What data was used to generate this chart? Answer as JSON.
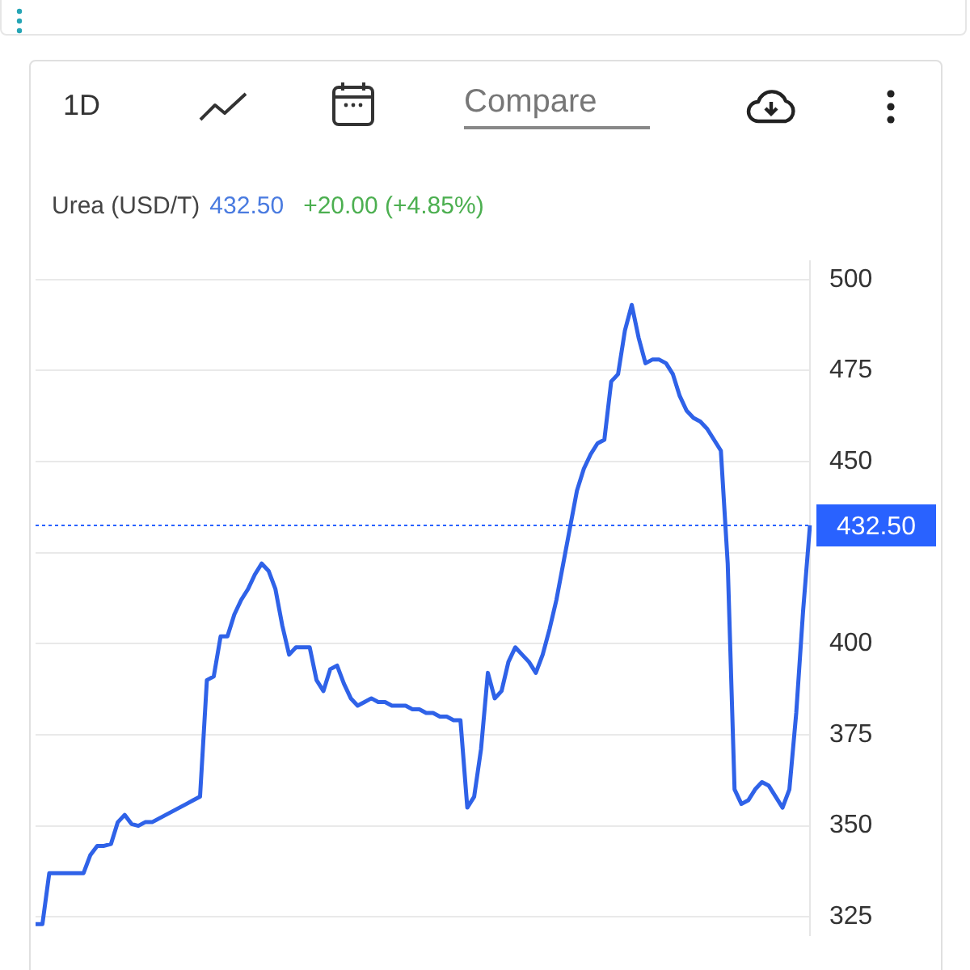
{
  "chart_data": {
    "type": "line",
    "title": "Urea (USD/T)",
    "annotations": [
      "432.50",
      "+20.00 (+4.85%)",
      "1D",
      "Compare"
    ],
    "categories": [
      null,
      null,
      null,
      null,
      null,
      null,
      null,
      null,
      null,
      null,
      null,
      null,
      null,
      null,
      null,
      null,
      null,
      null,
      null,
      null,
      null,
      null,
      null,
      null,
      null,
      null,
      null,
      null,
      null,
      null,
      null,
      null,
      null,
      null,
      null,
      null,
      null,
      null,
      null,
      null,
      null,
      null,
      null,
      null,
      null,
      null,
      null,
      null,
      null,
      null,
      null,
      null,
      null,
      null,
      null,
      null,
      null,
      null,
      null,
      null,
      null,
      null,
      null,
      null,
      null,
      null,
      null,
      null,
      null,
      null,
      null,
      null,
      null,
      null,
      null,
      null,
      null,
      null,
      null,
      null,
      null,
      null,
      null,
      null,
      null,
      null,
      null,
      null,
      null,
      null,
      null,
      null,
      null,
      null,
      null,
      null,
      null,
      null,
      null,
      null,
      null,
      null,
      null,
      null,
      null,
      null,
      null,
      null,
      null,
      null,
      null,
      null,
      null,
      null
    ],
    "series": [
      {
        "color": "#2f62e8",
        "values": [
          323,
          323,
          337,
          337,
          337,
          337,
          337,
          337,
          342,
          344.5,
          344.5,
          345,
          351,
          353,
          350.5,
          350,
          351,
          351,
          352,
          353,
          354,
          355,
          356,
          357,
          358,
          390,
          391,
          402,
          402,
          408,
          412,
          415,
          419,
          422,
          420,
          415,
          405,
          397,
          399,
          399,
          399,
          390,
          387,
          393,
          394,
          389,
          385,
          383,
          384,
          385,
          384,
          384,
          383,
          383,
          383,
          382,
          382,
          381,
          381,
          380,
          380,
          379,
          379,
          355,
          358,
          371,
          392,
          385,
          387,
          395,
          399,
          397,
          395,
          392,
          397,
          404,
          412,
          422,
          432,
          442,
          448,
          452,
          455,
          456,
          472,
          474,
          486,
          493,
          484,
          477,
          478,
          478,
          477,
          474,
          468,
          464,
          462,
          461,
          459,
          456,
          453,
          422,
          360,
          356,
          357,
          360,
          362,
          361,
          358,
          355,
          360,
          381,
          409,
          432.5
        ]
      }
    ],
    "ylim": [
      320,
      505
    ],
    "yticks": [
      325,
      350,
      375,
      400,
      {
        "value": 425,
        "label": null
      },
      450,
      475,
      500
    ],
    "grid": "y",
    "marker": "none",
    "line_style": "solid",
    "ref_lines": [
      {
        "axis": "y",
        "value": 432.5,
        "label": "432.50",
        "color": "#2962ff",
        "line_style": "dotted"
      }
    ]
  }
}
